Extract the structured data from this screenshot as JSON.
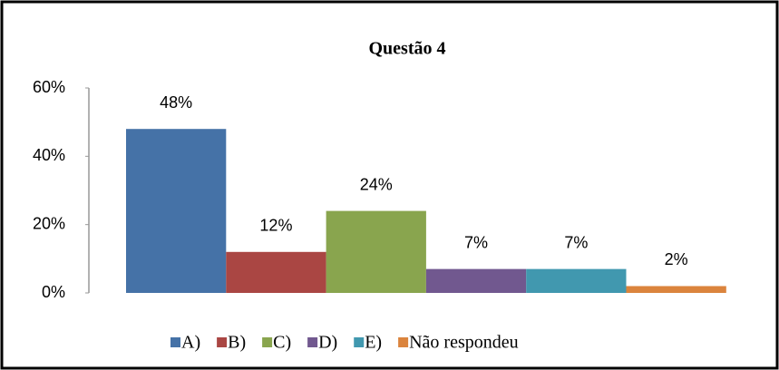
{
  "chart_data": {
    "type": "bar",
    "title": "Questão 4",
    "series": [
      {
        "name": "A)",
        "color": "#4572a7",
        "values": [
          48
        ],
        "value_labels": [
          "48%"
        ]
      },
      {
        "name": "B)",
        "color": "#aa4643",
        "values": [
          12
        ],
        "value_labels": [
          "12%"
        ]
      },
      {
        "name": "C)",
        "color": "#89a54e",
        "values": [
          24
        ],
        "value_labels": [
          "24%"
        ]
      },
      {
        "name": "D)",
        "color": "#71588f",
        "values": [
          7
        ],
        "value_labels": [
          "7%"
        ]
      },
      {
        "name": "E)",
        "color": "#4198af",
        "values": [
          7
        ],
        "value_labels": [
          "7%"
        ]
      },
      {
        "name": "Não respondeu",
        "color": "#db843d",
        "values": [
          2
        ],
        "value_labels": [
          "2%"
        ]
      }
    ],
    "ylim": [
      0,
      60
    ],
    "yticks": [
      {
        "value": 0,
        "label": "0%"
      },
      {
        "value": 20,
        "label": "20%"
      },
      {
        "value": 40,
        "label": "40%"
      },
      {
        "value": 60,
        "label": "60%"
      }
    ],
    "legend": "bottom"
  }
}
